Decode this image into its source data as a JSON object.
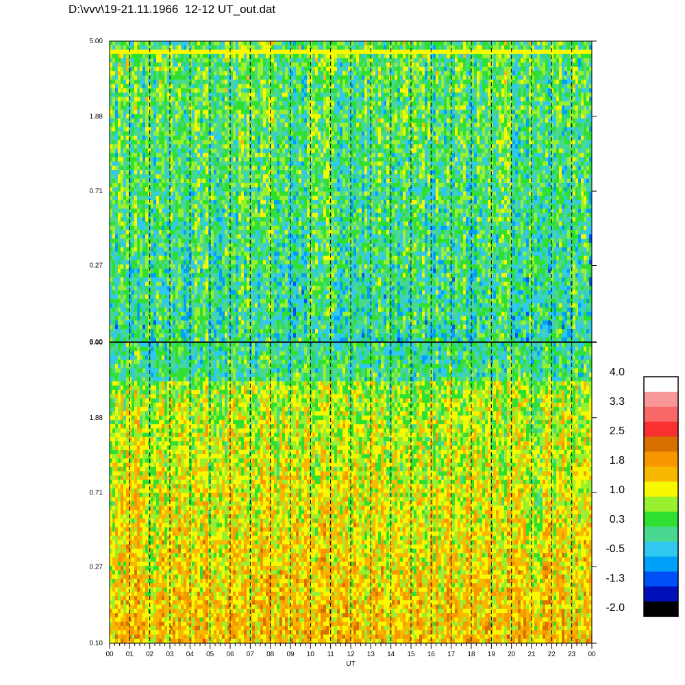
{
  "chart_data": {
    "type": "heatmap",
    "title": "D:\\vvv\\19-21.11.1966  12-12 UT_out.dat",
    "xlabel": "UT",
    "x_ticks": [
      "00",
      "01",
      "02",
      "03",
      "04",
      "05",
      "06",
      "07",
      "08",
      "09",
      "10",
      "11",
      "12",
      "13",
      "14",
      "15",
      "16",
      "17",
      "18",
      "19",
      "20",
      "21",
      "22",
      "23",
      "00"
    ],
    "y_scale": "log",
    "y_ticks": [
      "5.00",
      "1.88",
      "0.71",
      "0.27",
      "0.10"
    ],
    "y_tick_values": [
      5.0,
      1.88,
      0.71,
      0.27,
      0.1
    ],
    "ylim": [
      0.1,
      5.0
    ],
    "xlim_hours": [
      0,
      24
    ],
    "grid": "dashed vertical lines at each hour",
    "panels": [
      {
        "name": "upper",
        "value_range_typical": [
          -0.5,
          1.0
        ],
        "dominant_colors": [
          "#48d890",
          "#30c8f0",
          "#98f030",
          "#f8f800"
        ]
      },
      {
        "name": "lower",
        "value_range_typical": [
          0.3,
          1.8
        ],
        "dominant_colors": [
          "#f8f800",
          "#f8b800",
          "#f89800",
          "#98f030"
        ]
      }
    ],
    "colorbar": {
      "labels": [
        "4.0",
        "3.3",
        "2.5",
        "1.8",
        "1.0",
        "0.3",
        "-0.5",
        "-1.3",
        "-2.0"
      ],
      "colors_top_to_bottom": [
        "#ffffff",
        "#f89898",
        "#f86868",
        "#f83030",
        "#d87000",
        "#f89800",
        "#f8b800",
        "#f8f800",
        "#98f030",
        "#30e030",
        "#48d890",
        "#30c8f0",
        "#00a0f8",
        "#0050f8",
        "#0010b8",
        "#000000"
      ]
    }
  }
}
